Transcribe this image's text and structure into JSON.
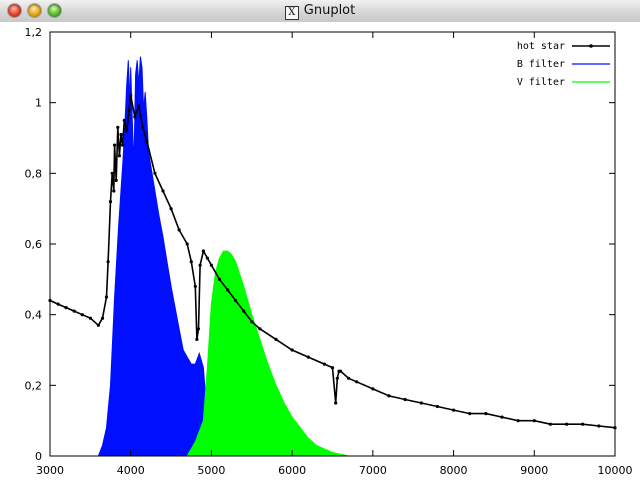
{
  "window": {
    "title": "Gnuplot",
    "title_icon": "x11-icon",
    "buttons": [
      "close",
      "minimize",
      "zoom"
    ]
  },
  "chart_data": {
    "type": "area",
    "title": "",
    "xlabel": "",
    "ylabel": "",
    "xlim": [
      3000,
      10000
    ],
    "ylim": [
      0,
      1.2
    ],
    "x_ticks": [
      "3000",
      "4000",
      "5000",
      "6000",
      "7000",
      "8000",
      "9000",
      "10000"
    ],
    "y_ticks": [
      "0",
      "0,2",
      "0,4",
      "0,6",
      "0,8",
      "1",
      "1,2"
    ],
    "legend_position": "top-right",
    "grid": false,
    "series": [
      {
        "name": "hot star",
        "style": "linespoints",
        "color": "#000000",
        "x": [
          3000,
          3100,
          3200,
          3300,
          3400,
          3500,
          3600,
          3650,
          3700,
          3720,
          3750,
          3770,
          3790,
          3800,
          3820,
          3840,
          3860,
          3880,
          3900,
          3920,
          3950,
          3980,
          4000,
          4050,
          4100,
          4150,
          4200,
          4300,
          4400,
          4500,
          4600,
          4700,
          4750,
          4800,
          4820,
          4840,
          4860,
          4900,
          4950,
          5000,
          5100,
          5200,
          5300,
          5400,
          5500,
          5600,
          5800,
          6000,
          6200,
          6400,
          6500,
          6540,
          6560,
          6580,
          6600,
          6700,
          6800,
          7000,
          7200,
          7400,
          7600,
          7800,
          8000,
          8200,
          8400,
          8600,
          8800,
          9000,
          9200,
          9400,
          9600,
          9800,
          10000
        ],
        "values": [
          0.44,
          0.43,
          0.42,
          0.41,
          0.4,
          0.39,
          0.37,
          0.39,
          0.45,
          0.55,
          0.72,
          0.8,
          0.75,
          0.88,
          0.78,
          0.93,
          0.85,
          0.91,
          0.88,
          0.95,
          0.92,
          0.98,
          1.02,
          0.96,
          0.99,
          0.93,
          0.89,
          0.8,
          0.75,
          0.7,
          0.64,
          0.6,
          0.55,
          0.48,
          0.33,
          0.36,
          0.54,
          0.58,
          0.56,
          0.54,
          0.5,
          0.47,
          0.44,
          0.41,
          0.38,
          0.36,
          0.33,
          0.3,
          0.28,
          0.26,
          0.25,
          0.15,
          0.22,
          0.24,
          0.24,
          0.22,
          0.21,
          0.19,
          0.17,
          0.16,
          0.15,
          0.14,
          0.13,
          0.12,
          0.12,
          0.11,
          0.1,
          0.1,
          0.09,
          0.09,
          0.09,
          0.085,
          0.08
        ]
      },
      {
        "name": "B filter",
        "style": "filled",
        "color": "#0010ff",
        "x": [
          3600,
          3650,
          3700,
          3750,
          3800,
          3850,
          3900,
          3920,
          3950,
          3970,
          3990,
          4000,
          4020,
          4040,
          4060,
          4080,
          4100,
          4120,
          4140,
          4160,
          4180,
          4200,
          4220,
          4250,
          4300,
          4350,
          4400,
          4450,
          4500,
          4550,
          4600,
          4650,
          4700,
          4750,
          4800,
          4850,
          4900,
          4950,
          5000
        ],
        "values": [
          0,
          0.03,
          0.08,
          0.2,
          0.45,
          0.65,
          0.82,
          0.9,
          1.05,
          1.12,
          1.0,
          1.1,
          0.95,
          0.82,
          1.08,
          1.12,
          1.05,
          1.13,
          1.1,
          0.98,
          1.03,
          0.95,
          0.86,
          0.82,
          0.75,
          0.68,
          0.62,
          0.55,
          0.48,
          0.42,
          0.36,
          0.3,
          0.28,
          0.26,
          0.26,
          0.29,
          0.25,
          0.1,
          0
        ]
      },
      {
        "name": "V filter",
        "style": "filled",
        "color": "#00ff00",
        "x": [
          4700,
          4800,
          4900,
          4950,
          5000,
          5050,
          5100,
          5150,
          5200,
          5250,
          5300,
          5400,
          5500,
          5600,
          5700,
          5800,
          5900,
          6000,
          6100,
          6200,
          6300,
          6400,
          6500,
          6600,
          6700
        ],
        "values": [
          0,
          0.04,
          0.1,
          0.25,
          0.43,
          0.52,
          0.56,
          0.58,
          0.58,
          0.57,
          0.55,
          0.48,
          0.4,
          0.33,
          0.26,
          0.2,
          0.15,
          0.11,
          0.08,
          0.05,
          0.03,
          0.02,
          0.01,
          0.005,
          0
        ]
      }
    ]
  }
}
